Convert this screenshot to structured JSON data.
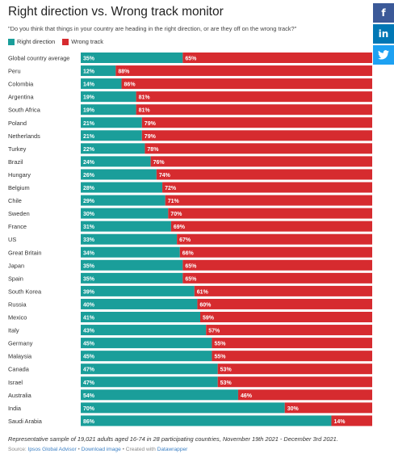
{
  "header": {
    "title": "Right direction vs. Wrong track monitor",
    "subtitle": "\"Do you think that things in your country are heading in the right direction, or are they off on the wrong track?\""
  },
  "social": {
    "facebook_icon": "f",
    "linkedin_icon": "in",
    "twitter_icon": "♥"
  },
  "colors": {
    "right": "#1a9e9a",
    "wrong": "#d62b2f"
  },
  "chart_data": {
    "type": "bar",
    "orientation": "horizontal",
    "stacked": true,
    "legend_position": "top-left",
    "categories": [
      "Global country average",
      "Peru",
      "Colombia",
      "Argentina",
      "South Africa",
      "Poland",
      "Netherlands",
      "Turkey",
      "Brazil",
      "Hungary",
      "Belgium",
      "Chile",
      "Sweden",
      "France",
      "US",
      "Great Britain",
      "Japan",
      "Spain",
      "South Korea",
      "Russia",
      "Mexico",
      "Italy",
      "Germany",
      "Malaysia",
      "Canada",
      "Israel",
      "Australia",
      "India",
      "Saudi Arabia"
    ],
    "series": [
      {
        "name": "Right direction",
        "values": [
          35,
          12,
          14,
          19,
          19,
          21,
          21,
          22,
          24,
          26,
          28,
          29,
          30,
          31,
          33,
          34,
          35,
          35,
          39,
          40,
          41,
          43,
          45,
          45,
          47,
          47,
          54,
          70,
          86
        ]
      },
      {
        "name": "Wrong track",
        "values": [
          65,
          88,
          86,
          81,
          81,
          79,
          79,
          78,
          76,
          74,
          72,
          71,
          70,
          69,
          67,
          66,
          65,
          65,
          61,
          60,
          59,
          57,
          55,
          55,
          53,
          53,
          46,
          30,
          14
        ]
      }
    ],
    "value_suffix": "%",
    "xlim": [
      0,
      100
    ],
    "grid": false
  },
  "footer": {
    "footnote": "Representative sample of 19,021 adults aged 16-74 in 28 participating countries, November 19th 2021 - December 3rd 2021.",
    "source_prefix": "Source: ",
    "source_name": "Ipsos Global Advisor",
    "sep1": " • ",
    "download_link": "Download image",
    "sep2": " • Created with ",
    "datawrapper_link": "Datawrapper"
  }
}
